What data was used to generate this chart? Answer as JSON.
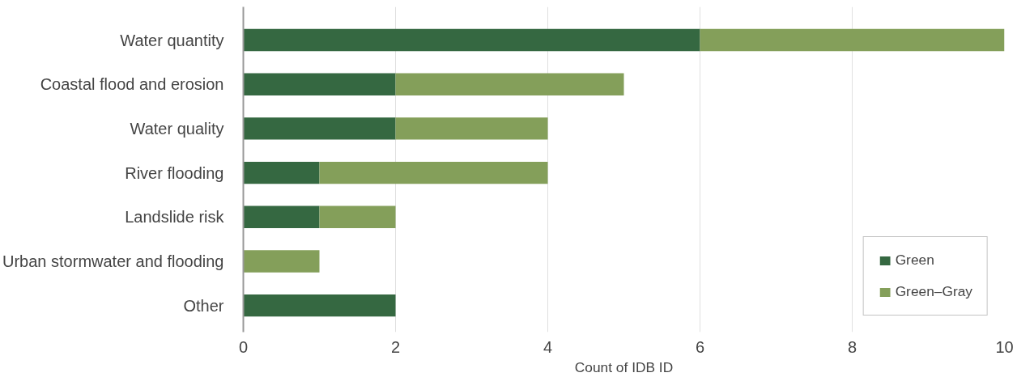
{
  "chart_data": {
    "type": "bar",
    "orientation": "horizontal",
    "stacked": true,
    "categories": [
      "Water quantity",
      "Coastal flood and erosion",
      "Water quality",
      "River flooding",
      "Landslide risk",
      "Urban stormwater and flooding",
      "Other"
    ],
    "series": [
      {
        "name": "Green",
        "color": "#356841",
        "values": [
          6,
          2,
          2,
          1,
          1,
          0,
          2
        ]
      },
      {
        "name": "Green–Gray",
        "color": "#849f5a",
        "values": [
          4,
          3,
          2,
          3,
          1,
          1,
          0
        ]
      }
    ],
    "xlabel": "Count of IDB ID",
    "xlim": [
      0,
      10
    ],
    "xticks": [
      0,
      2,
      4,
      6,
      8,
      10
    ],
    "grid": "x",
    "legend": "bottom right"
  }
}
